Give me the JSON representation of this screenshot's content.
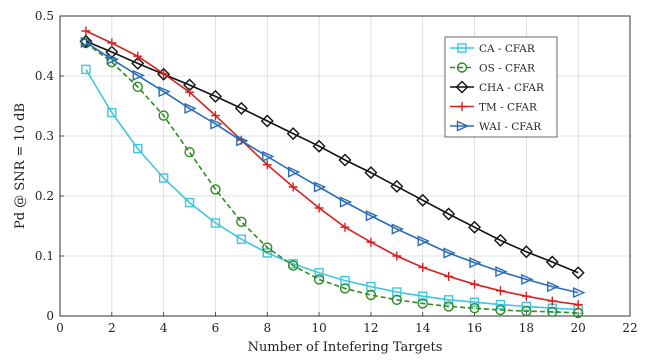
{
  "chart_data": {
    "type": "line",
    "title": "",
    "xlabel": "Number of Intefering Targets",
    "ylabel": "Pd @ SNR = 10 dB",
    "xlim": [
      0,
      22
    ],
    "ylim": [
      0,
      0.5
    ],
    "xticks": [
      0,
      2,
      4,
      6,
      8,
      10,
      12,
      14,
      16,
      18,
      20,
      22
    ],
    "yticks": [
      0,
      0.1,
      0.2,
      0.3,
      0.4,
      0.5
    ],
    "grid": true,
    "legend_position": "top-right",
    "x": [
      1,
      2,
      3,
      4,
      5,
      6,
      7,
      8,
      9,
      10,
      11,
      12,
      13,
      14,
      15,
      16,
      17,
      18,
      19,
      20
    ],
    "series": [
      {
        "name": "CA - CFAR",
        "color": "#3ec6e0",
        "marker": "square",
        "dash": "solid",
        "values": [
          0.411,
          0.339,
          0.279,
          0.23,
          0.189,
          0.155,
          0.128,
          0.105,
          0.087,
          0.072,
          0.059,
          0.049,
          0.04,
          0.033,
          0.027,
          0.023,
          0.019,
          0.016,
          0.013,
          0.011
        ]
      },
      {
        "name": "OS - CFAR",
        "color": "#2e8b22",
        "marker": "circle",
        "dash": "dashed",
        "values": [
          0.455,
          0.423,
          0.382,
          0.334,
          0.273,
          0.211,
          0.157,
          0.114,
          0.084,
          0.061,
          0.046,
          0.035,
          0.027,
          0.021,
          0.016,
          0.013,
          0.01,
          0.008,
          0.007,
          0.005
        ]
      },
      {
        "name": "CHA - CFAR",
        "color": "#111111",
        "marker": "diamond",
        "dash": "solid",
        "values": [
          0.458,
          0.44,
          0.421,
          0.403,
          0.385,
          0.366,
          0.346,
          0.325,
          0.304,
          0.283,
          0.26,
          0.239,
          0.216,
          0.193,
          0.17,
          0.148,
          0.126,
          0.107,
          0.09,
          0.072
        ]
      },
      {
        "name": "TM - CFAR",
        "color": "#d81f1f",
        "marker": "plus",
        "dash": "solid",
        "values": [
          0.475,
          0.455,
          0.433,
          0.404,
          0.373,
          0.334,
          0.293,
          0.252,
          0.215,
          0.18,
          0.148,
          0.123,
          0.1,
          0.081,
          0.066,
          0.053,
          0.042,
          0.033,
          0.025,
          0.019
        ]
      },
      {
        "name": "WAI - CFAR",
        "color": "#2a6bb8",
        "marker": "triangle-right",
        "dash": "solid",
        "values": [
          0.456,
          0.428,
          0.401,
          0.374,
          0.346,
          0.32,
          0.292,
          0.266,
          0.24,
          0.215,
          0.19,
          0.167,
          0.145,
          0.125,
          0.105,
          0.089,
          0.074,
          0.061,
          0.049,
          0.039
        ]
      }
    ]
  }
}
